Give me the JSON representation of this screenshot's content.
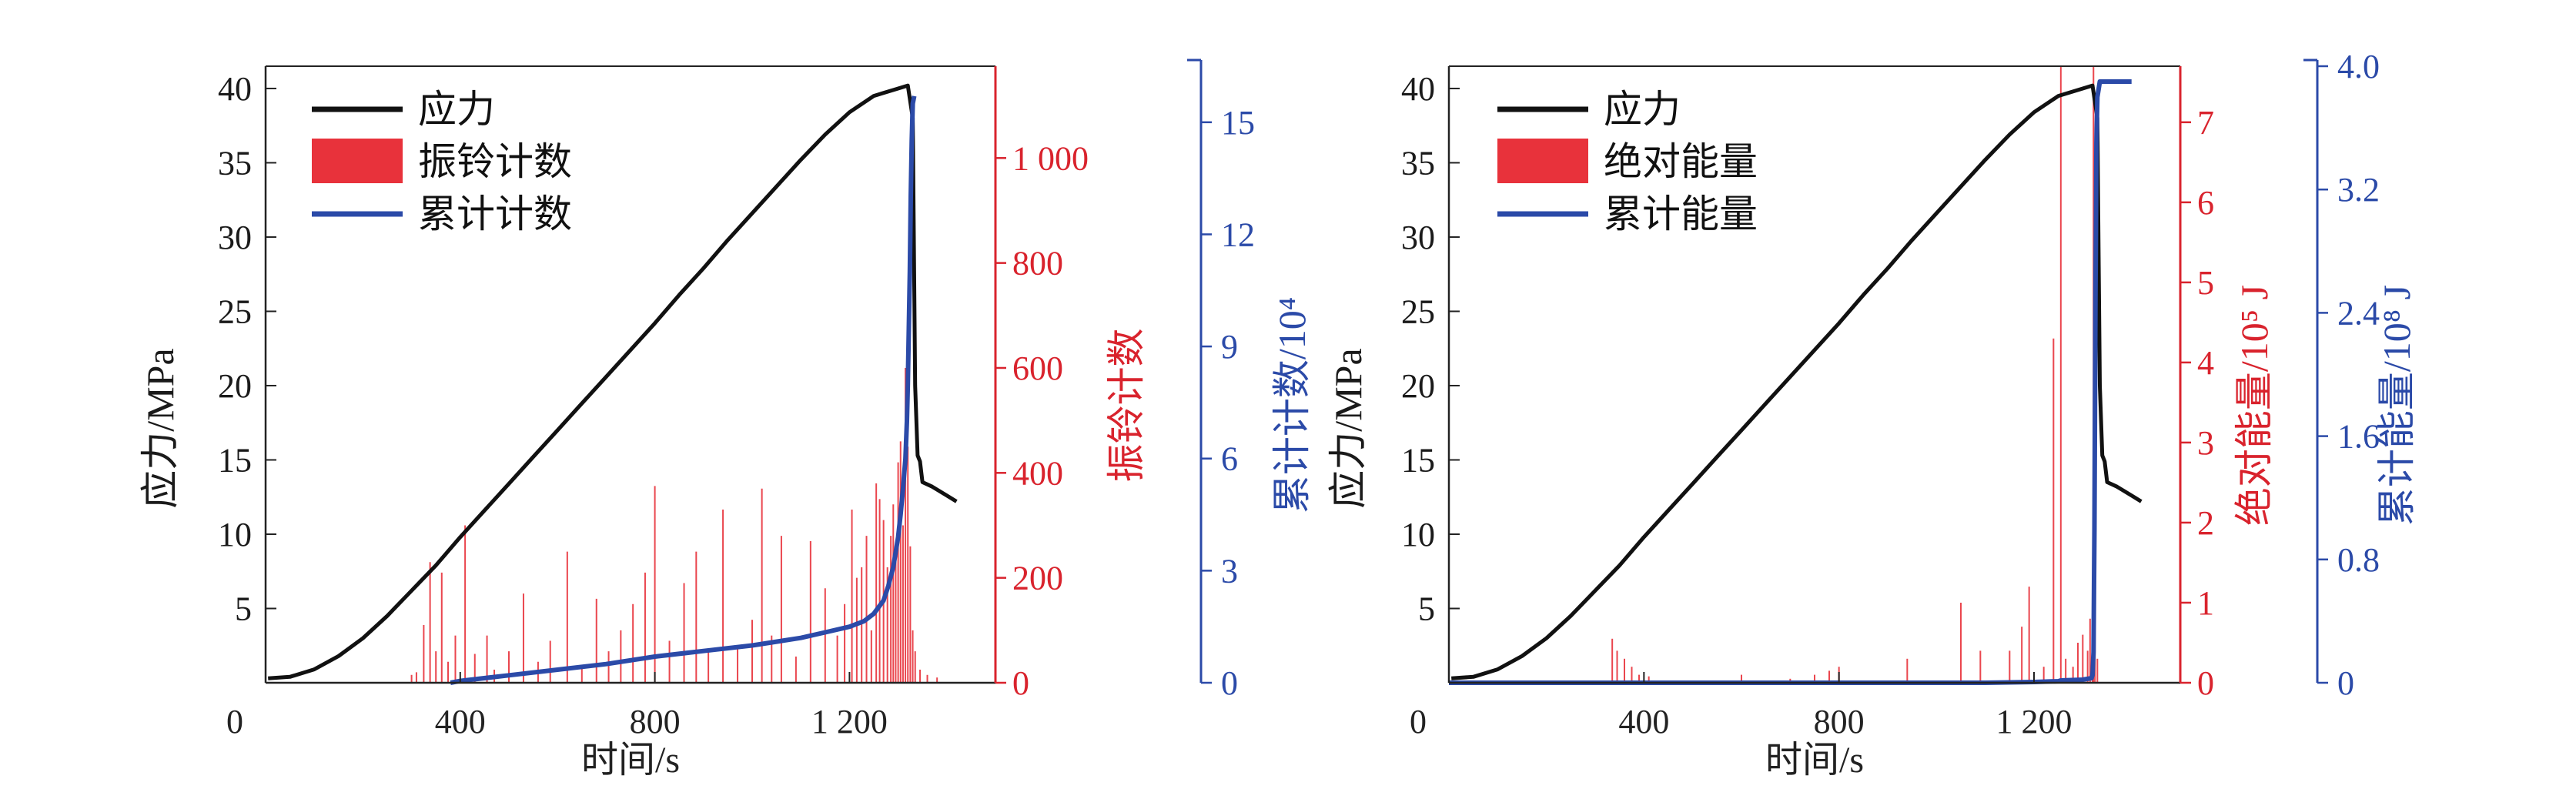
{
  "chart_data": [
    {
      "type": "line",
      "title": "",
      "xlabel": "时间/s",
      "xlim": [
        0,
        1500
      ],
      "x_ticks": [
        0,
        400,
        800,
        1200
      ],
      "x_tick_labels": [
        "0",
        "400",
        "800",
        "1 200"
      ],
      "axes": {
        "left": {
          "label": "应力/MPa",
          "color": "#1a1a1a",
          "ylim": [
            0,
            41.5
          ],
          "ticks": [
            5,
            10,
            15,
            20,
            25,
            30,
            35,
            40
          ],
          "tick_labels": [
            "5",
            "10",
            "15",
            "20",
            "25",
            "30",
            "35",
            "40"
          ]
        },
        "right1": {
          "label": "振铃计数",
          "color": "#d9232d",
          "ylim": [
            0,
            1175
          ],
          "ticks": [
            0,
            200,
            400,
            600,
            800,
            1000
          ],
          "tick_labels": [
            "0",
            "200",
            "400",
            "600",
            "800",
            "1 000"
          ]
        },
        "right2": {
          "label": "累计计数/10⁴",
          "color": "#2b4aa8",
          "ylim": [
            0,
            16.5
          ],
          "ticks": [
            0,
            3,
            6,
            9,
            12,
            15
          ],
          "tick_labels": [
            "0",
            "3",
            "6",
            "9",
            "12",
            "15"
          ]
        }
      },
      "legend": {
        "position": "top-left",
        "items": [
          "应力",
          "振铃计数",
          "累计计数"
        ]
      },
      "series": [
        {
          "name": "应力",
          "axis": "left",
          "style": "line",
          "color": "#111111",
          "x": [
            5,
            50,
            100,
            150,
            200,
            250,
            300,
            350,
            400,
            450,
            500,
            550,
            600,
            650,
            700,
            750,
            800,
            850,
            900,
            950,
            1000,
            1050,
            1100,
            1150,
            1200,
            1250,
            1300,
            1320,
            1330,
            1335,
            1340,
            1345,
            1350,
            1370,
            1400,
            1420
          ],
          "y": [
            0.3,
            0.4,
            0.9,
            1.8,
            3.0,
            4.5,
            6.2,
            7.9,
            9.8,
            11.6,
            13.4,
            15.2,
            17.0,
            18.8,
            20.6,
            22.4,
            24.2,
            26.1,
            27.9,
            29.8,
            31.6,
            33.4,
            35.2,
            36.9,
            38.4,
            39.5,
            40.0,
            40.2,
            38.0,
            20.0,
            15.3,
            14.9,
            13.5,
            13.2,
            12.6,
            12.2
          ]
        },
        {
          "name": "振铃计数",
          "axis": "right1",
          "style": "bars",
          "color": "#e8323b",
          "x": [
            300,
            310,
            325,
            338,
            350,
            362,
            375,
            390,
            410,
            430,
            455,
            470,
            500,
            530,
            560,
            585,
            620,
            650,
            680,
            705,
            730,
            755,
            780,
            800,
            830,
            860,
            885,
            910,
            940,
            970,
            1000,
            1020,
            1040,
            1060,
            1090,
            1120,
            1150,
            1175,
            1190,
            1205,
            1215,
            1225,
            1235,
            1245,
            1255,
            1262,
            1270,
            1278,
            1285,
            1290,
            1295,
            1300,
            1305,
            1310,
            1315,
            1320,
            1325,
            1330,
            1335,
            1345,
            1360,
            1380
          ],
          "y": [
            15,
            20,
            110,
            230,
            60,
            210,
            40,
            90,
            300,
            55,
            90,
            25,
            60,
            170,
            40,
            80,
            250,
            30,
            160,
            60,
            100,
            150,
            210,
            375,
            80,
            190,
            250,
            60,
            330,
            70,
            120,
            370,
            90,
            280,
            50,
            270,
            180,
            90,
            150,
            330,
            200,
            220,
            280,
            100,
            380,
            350,
            310,
            220,
            280,
            340,
            250,
            420,
            460,
            300,
            600,
            450,
            260,
            100,
            60,
            25,
            15,
            10
          ]
        },
        {
          "name": "累计计数",
          "axis": "right2",
          "style": "line",
          "color": "#2b4aa8",
          "x": [
            380,
            400,
            500,
            600,
            700,
            800,
            900,
            1000,
            1050,
            1100,
            1150,
            1200,
            1230,
            1250,
            1270,
            1280,
            1290,
            1300,
            1305,
            1310,
            1315,
            1318,
            1320,
            1322,
            1324,
            1326,
            1328,
            1330,
            1333
          ],
          "y": [
            0,
            0.05,
            0.2,
            0.35,
            0.5,
            0.7,
            0.85,
            1.0,
            1.1,
            1.2,
            1.35,
            1.5,
            1.65,
            1.85,
            2.2,
            2.6,
            3.1,
            3.9,
            4.5,
            5.2,
            6.0,
            7.0,
            8.0,
            9.5,
            11.0,
            13.0,
            14.5,
            15.5,
            15.7
          ]
        }
      ]
    },
    {
      "type": "line",
      "title": "",
      "xlabel": "时间/s",
      "xlim": [
        0,
        1500
      ],
      "x_ticks": [
        0,
        400,
        800,
        1200
      ],
      "x_tick_labels": [
        "0",
        "400",
        "800",
        "1 200"
      ],
      "axes": {
        "left": {
          "label": "应力/MPa",
          "color": "#1a1a1a",
          "ylim": [
            0,
            41.5
          ],
          "ticks": [
            5,
            10,
            15,
            20,
            25,
            30,
            35,
            40
          ],
          "tick_labels": [
            "5",
            "10",
            "15",
            "20",
            "25",
            "30",
            "35",
            "40"
          ]
        },
        "right1": {
          "label": "绝对能量/10⁵ J",
          "color": "#d9232d",
          "ylim": [
            0,
            7.7
          ],
          "ticks": [
            0,
            1,
            2,
            3,
            4,
            5,
            6,
            7
          ],
          "tick_labels": [
            "0",
            "1",
            "2",
            "3",
            "4",
            "5",
            "6",
            "7"
          ]
        },
        "right2": {
          "label": "累计能量/10⁸ J",
          "color": "#2b4aa8",
          "ylim": [
            0,
            4.0
          ],
          "ticks": [
            0,
            0.8,
            1.6,
            2.4,
            3.2,
            4.0
          ],
          "tick_labels": [
            "0",
            "0.8",
            "1.6",
            "2.4",
            "3.2",
            "4.0"
          ]
        }
      },
      "legend": {
        "position": "top-left",
        "items": [
          "应力",
          "绝对能量",
          "累计能量"
        ]
      },
      "series": [
        {
          "name": "应力",
          "axis": "left",
          "style": "line",
          "color": "#111111",
          "x": [
            5,
            50,
            100,
            150,
            200,
            250,
            300,
            350,
            400,
            450,
            500,
            550,
            600,
            650,
            700,
            750,
            800,
            850,
            900,
            950,
            1000,
            1050,
            1100,
            1150,
            1200,
            1250,
            1300,
            1320,
            1330,
            1335,
            1340,
            1345,
            1350,
            1370,
            1400,
            1420
          ],
          "y": [
            0.3,
            0.4,
            0.9,
            1.8,
            3.0,
            4.5,
            6.2,
            7.9,
            9.8,
            11.6,
            13.4,
            15.2,
            17.0,
            18.8,
            20.6,
            22.4,
            24.2,
            26.1,
            27.9,
            29.8,
            31.6,
            33.4,
            35.2,
            36.9,
            38.4,
            39.5,
            40.0,
            40.2,
            38.0,
            20.0,
            15.3,
            14.9,
            13.5,
            13.2,
            12.6,
            12.2
          ]
        },
        {
          "name": "绝对能量",
          "axis": "right1",
          "style": "bars",
          "color": "#e8323b",
          "x": [
            335,
            345,
            360,
            375,
            390,
            410,
            600,
            700,
            750,
            780,
            800,
            940,
            1050,
            1090,
            1150,
            1175,
            1190,
            1220,
            1240,
            1255,
            1265,
            1280,
            1290,
            1300,
            1310,
            1315,
            1320,
            1322,
            1325,
            1330
          ],
          "y": [
            0.55,
            0.4,
            0.3,
            0.2,
            0.1,
            0.08,
            0.1,
            0.05,
            0.1,
            0.15,
            0.2,
            0.3,
            1.0,
            0.4,
            0.4,
            0.7,
            1.2,
            0.2,
            4.3,
            7.7,
            0.3,
            0.2,
            0.5,
            0.6,
            0.4,
            0.8,
            0.5,
            7.7,
            2.2,
            0.3
          ]
        },
        {
          "name": "累计能量",
          "axis": "right2",
          "style": "line",
          "color": "#2b4aa8",
          "x": [
            0,
            300,
            600,
            900,
            1100,
            1200,
            1250,
            1255,
            1300,
            1318,
            1320,
            1322,
            1324,
            1326,
            1328,
            1330,
            1335,
            1345,
            1400
          ],
          "y": [
            0,
            0,
            0,
            0,
            0,
            0.005,
            0.01,
            0.015,
            0.02,
            0.03,
            0.05,
            0.2,
            1.0,
            2.5,
            3.5,
            3.8,
            3.9,
            3.9,
            3.9
          ]
        }
      ]
    }
  ]
}
